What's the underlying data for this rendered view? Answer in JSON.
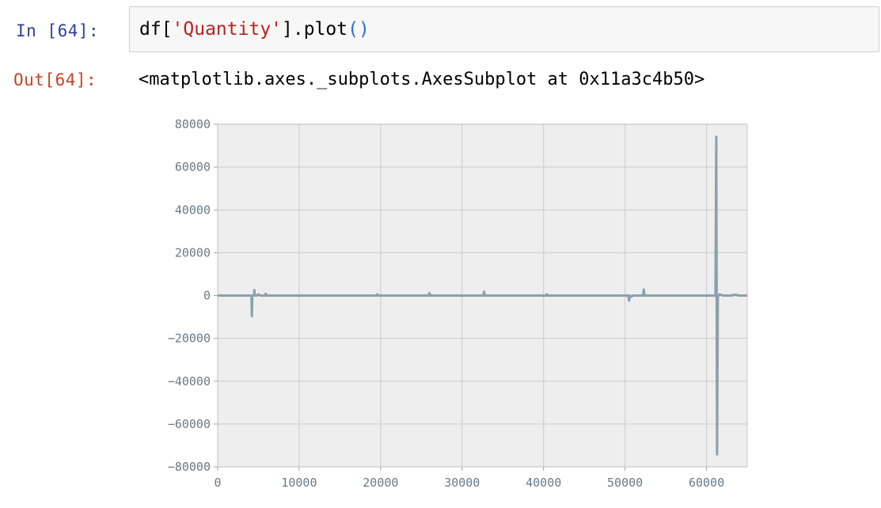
{
  "cell": {
    "in_prompt": "In [64]:",
    "code": {
      "obj": "df[",
      "key": "'Quantity'",
      "close": "].plot",
      "parens": "()"
    },
    "out_prompt": "Out[64]:",
    "output_text": "<matplotlib.axes._subplots.AxesSubplot at 0x11a3c4b50>"
  },
  "colors": {
    "series": "#8aa0ae",
    "plot_background": "#eeeeee",
    "grid": "#ffffff",
    "tick_label": "#6b7a85",
    "in_prompt": "#303f9f",
    "out_prompt": "#c14621",
    "string": "#ba2121"
  },
  "chart_data": {
    "type": "line",
    "title": "",
    "xlabel": "",
    "ylabel": "",
    "xlim": [
      0,
      65000
    ],
    "ylim": [
      -80000,
      80000
    ],
    "xticks": [
      0,
      10000,
      20000,
      30000,
      40000,
      50000,
      60000
    ],
    "yticks": [
      80000,
      60000,
      40000,
      20000,
      0,
      -20000,
      -40000,
      -60000,
      -80000
    ],
    "grid": true,
    "series": [
      {
        "x": [
          0,
          3900,
          4150,
          4200,
          4250,
          4300,
          4450,
          4500,
          4550,
          4800,
          5000,
          5200,
          5800,
          5900,
          6000,
          12000,
          16000,
          19500,
          19600,
          19700,
          23000,
          25900,
          26000,
          26100,
          29000,
          32600,
          32700,
          32800,
          36000,
          40300,
          40400,
          40500,
          44000,
          48000,
          50400,
          50500,
          50600,
          50700,
          51000,
          52200,
          52300,
          52400,
          52600,
          55000,
          58000,
          61000,
          61100,
          61200,
          61300,
          61400,
          61500,
          61600,
          62000,
          63000,
          63500,
          64000,
          65000
        ],
        "y": [
          0,
          0,
          0,
          -9600,
          0,
          0,
          0,
          2600,
          0,
          0,
          600,
          0,
          0,
          800,
          0,
          0,
          0,
          0,
          600,
          0,
          0,
          0,
          1200,
          0,
          0,
          0,
          1800,
          0,
          0,
          0,
          600,
          0,
          0,
          0,
          0,
          -2400,
          0,
          -600,
          0,
          0,
          2800,
          0,
          0,
          0,
          0,
          0,
          0,
          74200,
          -74200,
          0,
          0,
          600,
          0,
          0,
          400,
          0,
          0
        ]
      }
    ]
  }
}
